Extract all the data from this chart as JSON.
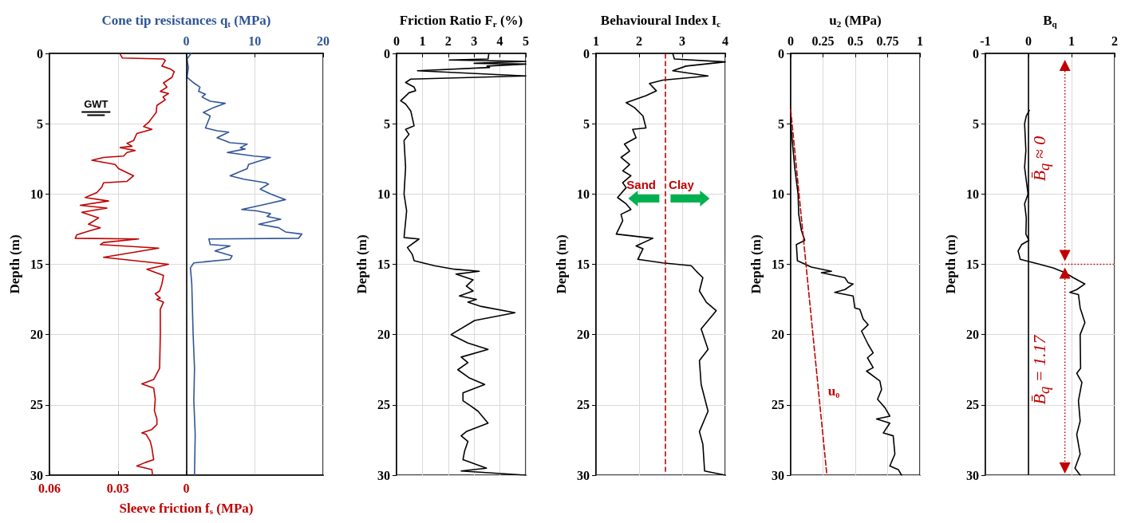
{
  "chart_data": [
    {
      "type": "line",
      "xlabel": "Sleeve friction f$_{s}$ (MPa)",
      "x2label": "Cone tip resistances q$_{t}$ (MPa)",
      "ylabel": "Depth (m)",
      "xlim": [
        0.06,
        -0.06
      ],
      "xticks": [
        0.06,
        0.03,
        0
      ],
      "x2lim": [
        -20,
        20
      ],
      "x2ticks": [
        0,
        10,
        20
      ],
      "ylim": [
        30,
        0
      ],
      "yticks": [
        0,
        5,
        10,
        15,
        20,
        25,
        30
      ],
      "grid": true,
      "marker": "none",
      "series": [
        {
          "color": "#c00000",
          "x": [
            0.029,
            0.028,
            0.01,
            0.0092,
            0.0107,
            0.007,
            0.0053,
            0.0063,
            0.01,
            0.0085,
            0.0114,
            0.0078,
            0.0102,
            0.0092,
            0.0129,
            0.0132,
            0.0151,
            0.0165,
            0.0187,
            0.0151,
            0.0217,
            0.0231,
            0.026,
            0.0238,
            0.029,
            0.0224,
            0.026,
            0.0275,
            0.0363,
            0.0414,
            0.0312,
            0.0297,
            0.0231,
            0.026,
            0.0363,
            0.037,
            0.0392,
            0.0443,
            0.0341,
            0.0465,
            0.0348,
            0.0458,
            0.0385,
            0.0429,
            0.0377,
            0.0421,
            0.048,
            0.0487,
            0.0209,
            0.0363,
            0.0377,
            0.0121,
            0.0363,
            0.0078,
            0.0173,
            0.01,
            0.0107,
            0.0117,
            0.0136,
            0.0114,
            0.0129,
            0.01,
            0.0114,
            0.0114,
            0.0117,
            0.0143,
            0.0195,
            0.0143,
            0.0136,
            0.014,
            0.0129,
            0.0129,
            0.0151,
            0.0195,
            0.0176,
            0.0158,
            0.0151,
            0.0143,
            0.018,
            0.0217,
            0.0151,
            0.0148
          ],
          "values": [
            0.05,
            0.33,
            0.4,
            0.5,
            0.9,
            1.1,
            1.3,
            1.7,
            2.1,
            2.4,
            2.7,
            2.85,
            3.1,
            3.3,
            3.7,
            4.2,
            4.6,
            4.9,
            5.2,
            5.4,
            5.7,
            6.2,
            6.4,
            6.6,
            6.7,
            6.9,
            7.05,
            7.3,
            7.4,
            7.6,
            7.9,
            8.2,
            8.7,
            9.1,
            9.2,
            9.5,
            9.9,
            10.25,
            10.5,
            10.8,
            11.0,
            11.3,
            11.7,
            12.15,
            12.4,
            12.6,
            12.9,
            13.15,
            13.2,
            13.45,
            13.6,
            13.85,
            14.5,
            15.0,
            15.35,
            15.8,
            16.4,
            16.9,
            17.1,
            17.4,
            17.5,
            17.7,
            18.2,
            20,
            22.4,
            23.2,
            23.5,
            23.8,
            24.6,
            25.4,
            26.0,
            26.4,
            26.75,
            27.0,
            27.1,
            27.6,
            28.05,
            28.9,
            29.1,
            29.35,
            29.6,
            30
          ]
        },
        {
          "color": "#2f5597",
          "axis": "x2",
          "x": [
            0.7,
            0.1,
            0.3,
            0.1,
            1.1,
            2.0,
            1.8,
            2.8,
            2.3,
            3.5,
            5.7,
            4.0,
            2.5,
            3.5,
            2.8,
            4.5,
            6.2,
            4.5,
            6.4,
            8.9,
            7.9,
            8.6,
            6.0,
            9.9,
            12.3,
            9.1,
            8.9,
            6.4,
            8.4,
            11.6,
            12.0,
            10.8,
            12.3,
            14.5,
            11.8,
            8.1,
            10.3,
            12.3,
            11.8,
            13.8,
            10.6,
            13.5,
            14.5,
            16.9,
            16.4,
            3.3,
            3.5,
            6.4,
            4.2,
            6.7,
            6.4,
            1.1,
            0.6,
            0.8,
            1.0,
            1.2,
            1.1,
            1.3,
            1.2
          ],
          "values": [
            0,
            0.4,
            1.0,
            1.7,
            2.1,
            2.4,
            2.7,
            2.9,
            3.1,
            3.4,
            3.55,
            3.85,
            4.2,
            4.45,
            5.3,
            5.5,
            5.6,
            6.0,
            6.35,
            6.45,
            6.7,
            6.8,
            7.05,
            7.3,
            7.4,
            7.9,
            8.2,
            8.7,
            8.95,
            9.2,
            9.3,
            9.65,
            10.0,
            10.4,
            10.7,
            11.1,
            11.2,
            11.4,
            11.6,
            11.8,
            12.15,
            12.4,
            12.7,
            12.85,
            13.15,
            13.2,
            13.6,
            13.7,
            14.05,
            14.4,
            14.65,
            14.9,
            15.25,
            16.4,
            20,
            22.4,
            24.7,
            27.1,
            30
          ]
        }
      ],
      "ref_lines": [
        {
          "axis": "x",
          "value": 0,
          "color": "#000000"
        }
      ],
      "annotations": [
        "GWT"
      ]
    },
    {
      "type": "line",
      "xlabel": "Friction Ratio F$_{r}$ (%)",
      "ylabel": "Depth (m)",
      "xlim": [
        0,
        5
      ],
      "xticks": [
        0,
        1,
        2,
        3,
        4,
        5
      ],
      "ylim": [
        30,
        0
      ],
      "yticks": [
        0,
        5,
        10,
        15,
        20,
        25,
        30
      ],
      "grid": true,
      "marker": "none",
      "series": [
        {
          "color": "#000000",
          "x": [
            3.57,
            3.54,
            2.04,
            5.0,
            3.0,
            5.0,
            3.5,
            3.6,
            0.81,
            5.0,
            0.55,
            0.35,
            0.68,
            0.74,
            0.48,
            0.16,
            0.35,
            0.55,
            0.68,
            0.35,
            0.48,
            0.29,
            0.35,
            0.29,
            0.39,
            0.29,
            0.87,
            0.42,
            0.61,
            0.68,
            1.46,
            2.24,
            3.2,
            2.3,
            2.96,
            2.7,
            2.96,
            2.43,
            3.09,
            2.76,
            3.28,
            4.58,
            3.02,
            2.11,
            2.76,
            3.54,
            2.5,
            2.76,
            2.37,
            2.83,
            3.41,
            2.57,
            2.57,
            2.89,
            3.15,
            3.54,
            2.7,
            2.5,
            2.76,
            2.63,
            2.57,
            3.48,
            2.5,
            5.0
          ],
          "values": [
            0,
            0.4,
            0.47,
            0.57,
            0.7,
            0.76,
            0.9,
            1.0,
            1.23,
            1.6,
            1.83,
            2.07,
            2.4,
            2.65,
            2.8,
            3.37,
            3.6,
            4.1,
            5.15,
            5.4,
            5.75,
            6.2,
            8.1,
            10.0,
            11.2,
            13.1,
            13.2,
            13.8,
            14.3,
            14.75,
            15.1,
            15.35,
            15.5,
            15.7,
            16.1,
            16.55,
            16.9,
            17.25,
            17.5,
            17.7,
            18.0,
            18.45,
            19.0,
            20.0,
            20.6,
            21.05,
            21.6,
            22.0,
            22.5,
            23.1,
            23.55,
            24.15,
            24.7,
            25.1,
            25.45,
            26.3,
            26.9,
            27.2,
            27.6,
            28.3,
            28.9,
            29.5,
            29.7,
            30
          ]
        }
      ]
    },
    {
      "type": "line",
      "xlabel": "Behavioural Index I$_{c}$",
      "ylabel": "Depth (m)",
      "xlim": [
        1,
        4
      ],
      "xticks": [
        1,
        2,
        3,
        4
      ],
      "ylim": [
        30,
        0
      ],
      "yticks": [
        0,
        5,
        10,
        15,
        20,
        25,
        30
      ],
      "grid": true,
      "marker": "none",
      "series": [
        {
          "color": "#000000",
          "x": [
            2.78,
            2.82,
            4.0,
            3.09,
            2.78,
            3.6,
            2.55,
            2.24,
            2.4,
            2.16,
            1.7,
            1.89,
            2.09,
            2.16,
            1.85,
            1.93,
            1.66,
            1.78,
            1.58,
            1.78,
            1.62,
            1.81,
            1.62,
            1.7,
            1.5,
            1.7,
            1.81,
            1.58,
            1.62,
            1.47,
            2.32,
            1.93,
            2.09,
            1.97,
            2.55,
            3.21,
            3.33,
            3.48,
            3.4,
            3.56,
            3.79,
            3.44,
            3.6,
            3.4,
            3.44,
            3.6,
            3.4,
            3.48,
            3.52,
            4.0
          ],
          "values": [
            0,
            0.4,
            0.6,
            0.9,
            1.23,
            1.6,
            1.9,
            2.14,
            2.66,
            3.0,
            3.5,
            3.85,
            4.45,
            5.3,
            5.4,
            6.0,
            6.45,
            6.95,
            7.4,
            7.9,
            8.35,
            8.7,
            9.2,
            9.55,
            10.25,
            10.7,
            11.1,
            11.45,
            11.9,
            12.85,
            13.15,
            13.7,
            13.9,
            14.65,
            14.9,
            15.1,
            15.5,
            15.95,
            16.9,
            17.7,
            18.3,
            19.6,
            21.05,
            21.85,
            23.55,
            25.45,
            26.9,
            27.8,
            29.7,
            30
          ]
        }
      ],
      "ref_lines": [
        {
          "axis": "x",
          "value": 2.6,
          "color": "#c00000",
          "line_style": "dashed"
        }
      ],
      "annotations": [
        "Sand",
        "Clay"
      ]
    },
    {
      "type": "line",
      "xlabel": "u$_{2}$ (MPa)",
      "ylabel": "Depth (m)",
      "xlim": [
        0,
        1
      ],
      "xticks": [
        0,
        0.25,
        0.5,
        0.75,
        1
      ],
      "ylim": [
        30,
        0
      ],
      "yticks": [
        0,
        5,
        10,
        15,
        20,
        25,
        30
      ],
      "grid": true,
      "marker": "none",
      "series": [
        {
          "color": "#000000",
          "x": [
            0,
            0,
            0.031,
            0.057,
            0.062,
            0.083,
            0.109,
            0.044,
            0.052,
            0.16,
            0.315,
            0.238,
            0.419,
            0.444,
            0.483,
            0.419,
            0.341,
            0.483,
            0.496,
            0.535,
            0.561,
            0.599,
            0.548,
            0.599,
            0.638,
            0.594,
            0.638,
            0.587,
            0.69,
            0.703,
            0.672,
            0.729,
            0.767,
            0.664,
            0.767,
            0.716,
            0.793,
            0.806,
            0.767,
            0.832,
            0.858
          ],
          "values": [
            4.1,
            5.0,
            8.1,
            10.0,
            11.45,
            12.6,
            13.3,
            13.6,
            14.75,
            15.2,
            15.5,
            15.6,
            15.95,
            16.3,
            16.4,
            16.8,
            17.0,
            17.25,
            18.1,
            18.2,
            18.9,
            19.3,
            19.75,
            20.7,
            21.3,
            21.65,
            22.35,
            22.6,
            23.3,
            23.9,
            24.6,
            25.2,
            25.8,
            26.0,
            26.3,
            27.0,
            27.2,
            28.5,
            29.35,
            29.6,
            30
          ]
        },
        {
          "name": "u₀",
          "color": "#c00000",
          "line_style": "dashed",
          "x": [
            0,
            0.215,
            0.28
          ],
          "values": [
            4,
            24,
            30
          ]
        }
      ]
    },
    {
      "type": "line",
      "xlabel": "B$_{q}$",
      "ylabel": "Depth (m)",
      "xlim": [
        -1,
        2
      ],
      "xticks": [
        -1,
        0,
        1,
        2
      ],
      "ylim": [
        30,
        0
      ],
      "yticks": [
        0,
        5,
        10,
        15,
        20,
        25,
        30
      ],
      "grid": true,
      "marker": "none",
      "series": [
        {
          "color": "#000000",
          "x": [
            0.02,
            -0.05,
            -0.09,
            -0.06,
            -0.09,
            -0.01,
            -0.09,
            -0.05,
            -0.06,
            0.01,
            -0.16,
            -0.24,
            -0.19,
            0.26,
            0.57,
            0.85,
            1.04,
            1.31,
            1.12,
            0.96,
            1.16,
            1.2,
            1.31,
            1.2,
            1.21,
            1.12,
            1.24,
            1.16,
            1.2,
            1.12,
            1.2,
            1.08,
            1.2
          ],
          "values": [
            4.05,
            4.45,
            5.0,
            6.9,
            8.1,
            10,
            10.7,
            11.7,
            12.85,
            13.3,
            13.6,
            14.05,
            14.65,
            15.0,
            15.25,
            15.6,
            15.95,
            16.4,
            16.8,
            17.0,
            17.15,
            18.1,
            19.15,
            20,
            22.4,
            22.75,
            23.4,
            24.7,
            26.15,
            27.1,
            28.5,
            29.5,
            30
          ]
        }
      ],
      "ref_lines": [
        {
          "axis": "x",
          "value": 0,
          "color": "#000000"
        },
        {
          "axis": "y",
          "value": 15,
          "color": "#c00000",
          "line_style": "dotted"
        }
      ],
      "annotations": [
        "B̄$_{q}$ ≈ 0",
        "B̄$_{q}$ = 1.17"
      ]
    }
  ]
}
